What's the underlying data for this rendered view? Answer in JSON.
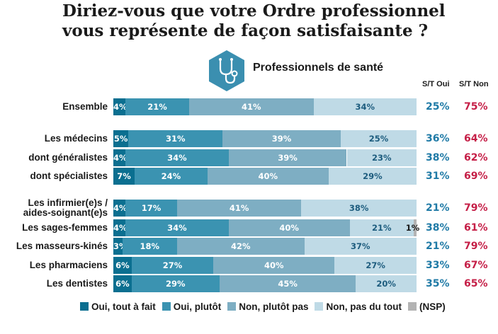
{
  "title_line1": "Diriez-vous que votre Ordre professionnel",
  "title_line2": "vous représente de façon satisfaisante ?",
  "badge_icon": "stethoscope-icon",
  "subtitle": "Professionnels de santé",
  "col_oui": "S/T Oui",
  "col_non": "S/T Non",
  "colors": {
    "oui_tout_a_fait": "#0b6f90",
    "oui_plutot": "#3b93b1",
    "non_plutot_pas": "#7eaec3",
    "non_pas_du_tout": "#bfdae6",
    "nsp": "#b3b3b3",
    "st_oui_text": "#1f7aa6",
    "st_non_text": "#c51f47"
  },
  "chart_data": {
    "type": "bar",
    "orientation": "horizontal",
    "stacked": true,
    "title": "Diriez-vous que votre Ordre professionnel vous représente de façon satisfaisante ?",
    "subtitle": "Professionnels de santé",
    "unit": "%",
    "categories": [
      "Ensemble",
      "Les médecins",
      "dont généralistes",
      "dont spécialistes",
      "Les infirmier(e)s / aides-soignant(e)s",
      "Les sages-femmes",
      "Les masseurs-kinés",
      "Les pharmaciens",
      "Les dentistes"
    ],
    "series": [
      {
        "name": "Oui, tout à fait",
        "values": [
          4,
          5,
          4,
          7,
          4,
          4,
          3,
          6,
          6
        ]
      },
      {
        "name": "Oui, plutôt",
        "values": [
          21,
          31,
          34,
          24,
          17,
          34,
          18,
          27,
          29
        ]
      },
      {
        "name": "Non, plutôt pas",
        "values": [
          41,
          39,
          39,
          40,
          41,
          40,
          42,
          40,
          45
        ]
      },
      {
        "name": "Non, pas du tout",
        "values": [
          34,
          25,
          23,
          29,
          38,
          21,
          37,
          27,
          20
        ]
      },
      {
        "name": "(NSP)",
        "values": [
          0,
          0,
          0,
          0,
          0,
          1,
          0,
          0,
          0
        ]
      }
    ],
    "st_oui": [
      25,
      36,
      38,
      31,
      21,
      38,
      21,
      33,
      35
    ],
    "st_non": [
      75,
      64,
      62,
      69,
      79,
      61,
      79,
      67,
      65
    ],
    "legend_position": "bottom"
  }
}
